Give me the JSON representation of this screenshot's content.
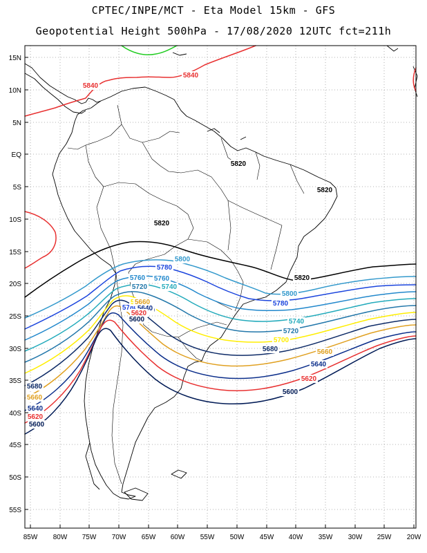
{
  "title_line1": "CPTEC/INPE/MCT  -   Eta Model 15km  -  GFS",
  "title_line2": "Geopotential Height 500hPa  -  17/08/2020 12UTC fct=211h",
  "lon_ticks": [
    "85W",
    "80W",
    "75W",
    "70W",
    "65W",
    "60W",
    "55W",
    "50W",
    "45W",
    "40W",
    "35W",
    "30W",
    "25W",
    "20W"
  ],
  "lat_ticks": [
    "15N",
    "10N",
    "5N",
    "EQ",
    "5S",
    "10S",
    "15S",
    "20S",
    "25S",
    "30S",
    "35S",
    "40S",
    "45S",
    "50S",
    "55S"
  ],
  "colors": {
    "5820": "#000000",
    "5800": "#3399cc",
    "5780": "#1a44dd",
    "5760": "#2288cc",
    "5740": "#22aabb",
    "5720": "#2277aa",
    "5700": "#ffee00",
    "5680": "#0d2a66",
    "5660": "#e0a020",
    "5640": "#0a2d8a",
    "5620": "#e83030",
    "5600": "#001a55",
    "5840": "#e83030",
    "5860": "#22cc22"
  },
  "contour_labels": [
    {
      "text": "5840",
      "color_key": "5840"
    },
    {
      "text": "5840",
      "color_key": "5840"
    },
    {
      "text": "5820",
      "color_key": "5820"
    },
    {
      "text": "5820",
      "color_key": "5820"
    },
    {
      "text": "5820",
      "color_key": "5820"
    },
    {
      "text": "5820",
      "color_key": "5820"
    },
    {
      "text": "5800",
      "color_key": "5800"
    },
    {
      "text": "5800",
      "color_key": "5800"
    },
    {
      "text": "5780",
      "color_key": "5780"
    },
    {
      "text": "5780",
      "color_key": "5780"
    },
    {
      "text": "5780",
      "color_key": "5780"
    },
    {
      "text": "5760",
      "color_key": "5760"
    },
    {
      "text": "5760",
      "color_key": "5760"
    },
    {
      "text": "5740",
      "color_key": "5740"
    },
    {
      "text": "5740",
      "color_key": "5740"
    },
    {
      "text": "5720",
      "color_key": "5720"
    },
    {
      "text": "5720",
      "color_key": "5720"
    },
    {
      "text": "5700",
      "color_key": "5700"
    },
    {
      "text": "5700",
      "color_key": "5700"
    },
    {
      "text": "5680",
      "color_key": "5680"
    },
    {
      "text": "5680",
      "color_key": "5680"
    },
    {
      "text": "5680",
      "color_key": "5680"
    },
    {
      "text": "5660",
      "color_key": "5660"
    },
    {
      "text": "5660",
      "color_key": "5660"
    },
    {
      "text": "5660",
      "color_key": "5660"
    },
    {
      "text": "5640",
      "color_key": "5640"
    },
    {
      "text": "5640",
      "color_key": "5640"
    },
    {
      "text": "5640",
      "color_key": "5640"
    },
    {
      "text": "5620",
      "color_key": "5620"
    },
    {
      "text": "5620",
      "color_key": "5620"
    },
    {
      "text": "5620",
      "color_key": "5620"
    },
    {
      "text": "5600",
      "color_key": "5600"
    },
    {
      "text": "5600",
      "color_key": "5600"
    },
    {
      "text": "5600",
      "color_key": "5600"
    }
  ]
}
